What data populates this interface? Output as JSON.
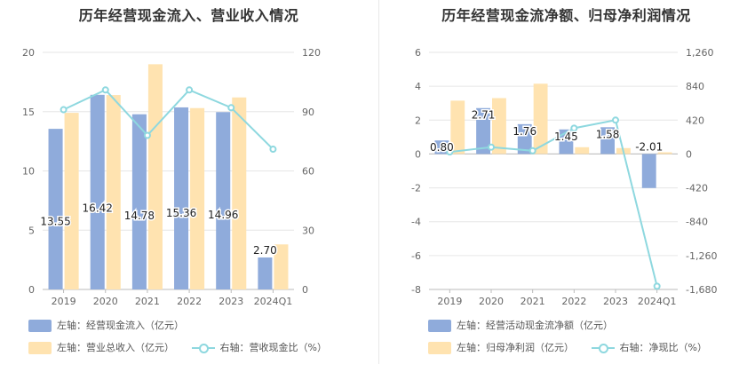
{
  "charts": [
    {
      "id": "left",
      "title": "历年经营现金流入、营业收入情况",
      "legend": [
        {
          "label": "左轴：经营现金流入（亿元）",
          "kind": "bar",
          "color": "#8fabdb"
        },
        {
          "label": "左轴：营业总收入（亿元）",
          "kind": "bar",
          "color": "#ffe3b0"
        },
        {
          "label": "右轴：营收现金比（%）",
          "kind": "line",
          "color": "#8ed8df"
        }
      ]
    },
    {
      "id": "right",
      "title": "历年经营现金流净额、归母净利润情况",
      "legend": [
        {
          "label": "左轴：经营活动现金流净额（亿元）",
          "kind": "bar",
          "color": "#8fabdb"
        },
        {
          "label": "左轴：归母净利润（亿元）",
          "kind": "bar",
          "color": "#ffe3b0"
        },
        {
          "label": "右轴：净现比（%）",
          "kind": "line",
          "color": "#8ed8df"
        }
      ]
    }
  ],
  "chart_data": [
    {
      "type": "bar",
      "title": "历年经营现金流入、营业收入情况",
      "categories": [
        "2019",
        "2020",
        "2021",
        "2022",
        "2023",
        "2024Q1"
      ],
      "left_axis": {
        "min": 0,
        "max": 20,
        "ticks": [
          "0",
          "5",
          "10",
          "15",
          "20"
        ]
      },
      "right_axis": {
        "min": 0,
        "max": 120,
        "ticks": [
          "0",
          "30",
          "60",
          "90",
          "120"
        ]
      },
      "series": [
        {
          "name": "左轴：经营现金流入（亿元）",
          "axis": "left",
          "kind": "bar",
          "color": "#8fabdb",
          "values": [
            13.55,
            16.42,
            14.78,
            15.36,
            14.96,
            2.7
          ],
          "labels": [
            "13.55",
            "16.42",
            "14.78",
            "15.36",
            "14.96",
            "2.70"
          ]
        },
        {
          "name": "左轴：营业总收入（亿元）",
          "axis": "left",
          "kind": "bar",
          "color": "#ffe3b0",
          "values": [
            14.9,
            16.4,
            19.0,
            15.3,
            16.2,
            3.8
          ]
        },
        {
          "name": "右轴：营收现金比（%）",
          "axis": "right",
          "kind": "line",
          "color": "#8ed8df",
          "values": [
            91,
            101,
            78,
            101,
            92,
            71
          ]
        }
      ],
      "grid": true,
      "legend_position": "bottom"
    },
    {
      "type": "bar",
      "title": "历年经营现金流净额、归母净利润情况",
      "categories": [
        "2019",
        "2020",
        "2021",
        "2022",
        "2023",
        "2024Q1"
      ],
      "left_axis": {
        "min": -8,
        "max": 6,
        "ticks": [
          "-8",
          "-6",
          "-4",
          "-2",
          "0",
          "2",
          "4",
          "6"
        ]
      },
      "right_axis": {
        "min": -1680,
        "max": 1260,
        "ticks": [
          "-1,680",
          "-1,260",
          "-840",
          "-420",
          "0",
          "420",
          "840",
          "1,260"
        ]
      },
      "series": [
        {
          "name": "左轴：经营活动现金流净额（亿元）",
          "axis": "left",
          "kind": "bar",
          "color": "#8fabdb",
          "values": [
            0.8,
            2.71,
            1.76,
            1.45,
            1.58,
            -2.01
          ],
          "labels": [
            "0.80",
            "2.71",
            "1.76",
            "1.45",
            "1.58",
            "-2.01"
          ]
        },
        {
          "name": "左轴：归母净利润（亿元）",
          "axis": "left",
          "kind": "bar",
          "color": "#ffe3b0",
          "values": [
            3.15,
            3.3,
            4.15,
            0.4,
            0.35,
            0.1
          ]
        },
        {
          "name": "右轴：净现比（%）",
          "axis": "right",
          "kind": "line",
          "color": "#8ed8df",
          "values": [
            25,
            85,
            40,
            320,
            420,
            -1640
          ]
        }
      ],
      "grid": true,
      "legend_position": "bottom"
    }
  ]
}
